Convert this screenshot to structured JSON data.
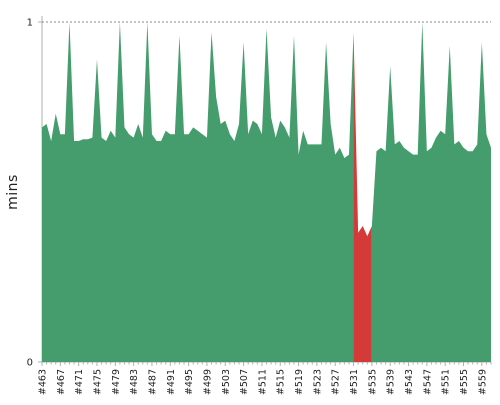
{
  "chart_data": {
    "type": "area",
    "title": "",
    "xlabel": "",
    "ylabel": "mins",
    "ylim": [
      0,
      1
    ],
    "y_ticks": [
      "0",
      "1"
    ],
    "grid": false,
    "reference_line": {
      "y": 1,
      "style": "dotted"
    },
    "colors": {
      "normal": "#459d6d",
      "failed": "#d33a38",
      "reference": "#888888"
    },
    "x": [
      463,
      464,
      465,
      466,
      467,
      468,
      469,
      470,
      471,
      472,
      473,
      474,
      475,
      476,
      477,
      478,
      479,
      480,
      481,
      482,
      483,
      484,
      485,
      486,
      487,
      488,
      489,
      490,
      491,
      492,
      493,
      494,
      495,
      496,
      497,
      498,
      499,
      500,
      501,
      502,
      503,
      504,
      505,
      506,
      507,
      508,
      509,
      510,
      511,
      512,
      513,
      514,
      515,
      516,
      517,
      518,
      519,
      520,
      521,
      522,
      523,
      524,
      525,
      526,
      527,
      528,
      529,
      530,
      531,
      532,
      533,
      534,
      535,
      536,
      537,
      538,
      539,
      540,
      541,
      542,
      543,
      544,
      545,
      546,
      547,
      548,
      549,
      550,
      551,
      552,
      553,
      554,
      555,
      556,
      557,
      558,
      559,
      560,
      561
    ],
    "x_tick_labels": [
      "#463",
      "#467",
      "#471",
      "#475",
      "#479",
      "#483",
      "#487",
      "#491",
      "#495",
      "#499",
      "#503",
      "#507",
      "#511",
      "#515",
      "#519",
      "#523",
      "#527",
      "#531",
      "#535",
      "#539",
      "#543",
      "#547",
      "#551",
      "#555",
      "#559"
    ],
    "series": [
      {
        "values": [
          0.69,
          0.7,
          0.65,
          0.73,
          0.67,
          0.67,
          1.0,
          0.65,
          0.65,
          0.655,
          0.655,
          0.66,
          0.89,
          0.66,
          0.65,
          0.68,
          0.66,
          1.0,
          0.69,
          0.67,
          0.66,
          0.7,
          0.66,
          1.0,
          0.67,
          0.65,
          0.65,
          0.68,
          0.67,
          0.67,
          0.96,
          0.67,
          0.67,
          0.69,
          0.68,
          0.67,
          0.66,
          0.97,
          0.78,
          0.7,
          0.71,
          0.67,
          0.65,
          0.7,
          0.94,
          0.67,
          0.71,
          0.7,
          0.67,
          0.98,
          0.72,
          0.66,
          0.71,
          0.69,
          0.66,
          0.96,
          0.61,
          0.68,
          0.64,
          0.64,
          0.64,
          0.64,
          0.94,
          0.7,
          0.61,
          0.63,
          0.6,
          0.61,
          0.97,
          0.38,
          0.4,
          0.37,
          0.4,
          0.62,
          0.63,
          0.62,
          0.87,
          0.64,
          0.65,
          0.63,
          0.62,
          0.61,
          0.61,
          1.0,
          0.62,
          0.63,
          0.66,
          0.68,
          0.67,
          0.93,
          0.64,
          0.65,
          0.63,
          0.62,
          0.62,
          0.64,
          0.94,
          0.67,
          0.63
        ],
        "failed_x": [
          532,
          533,
          534,
          535
        ]
      }
    ]
  }
}
